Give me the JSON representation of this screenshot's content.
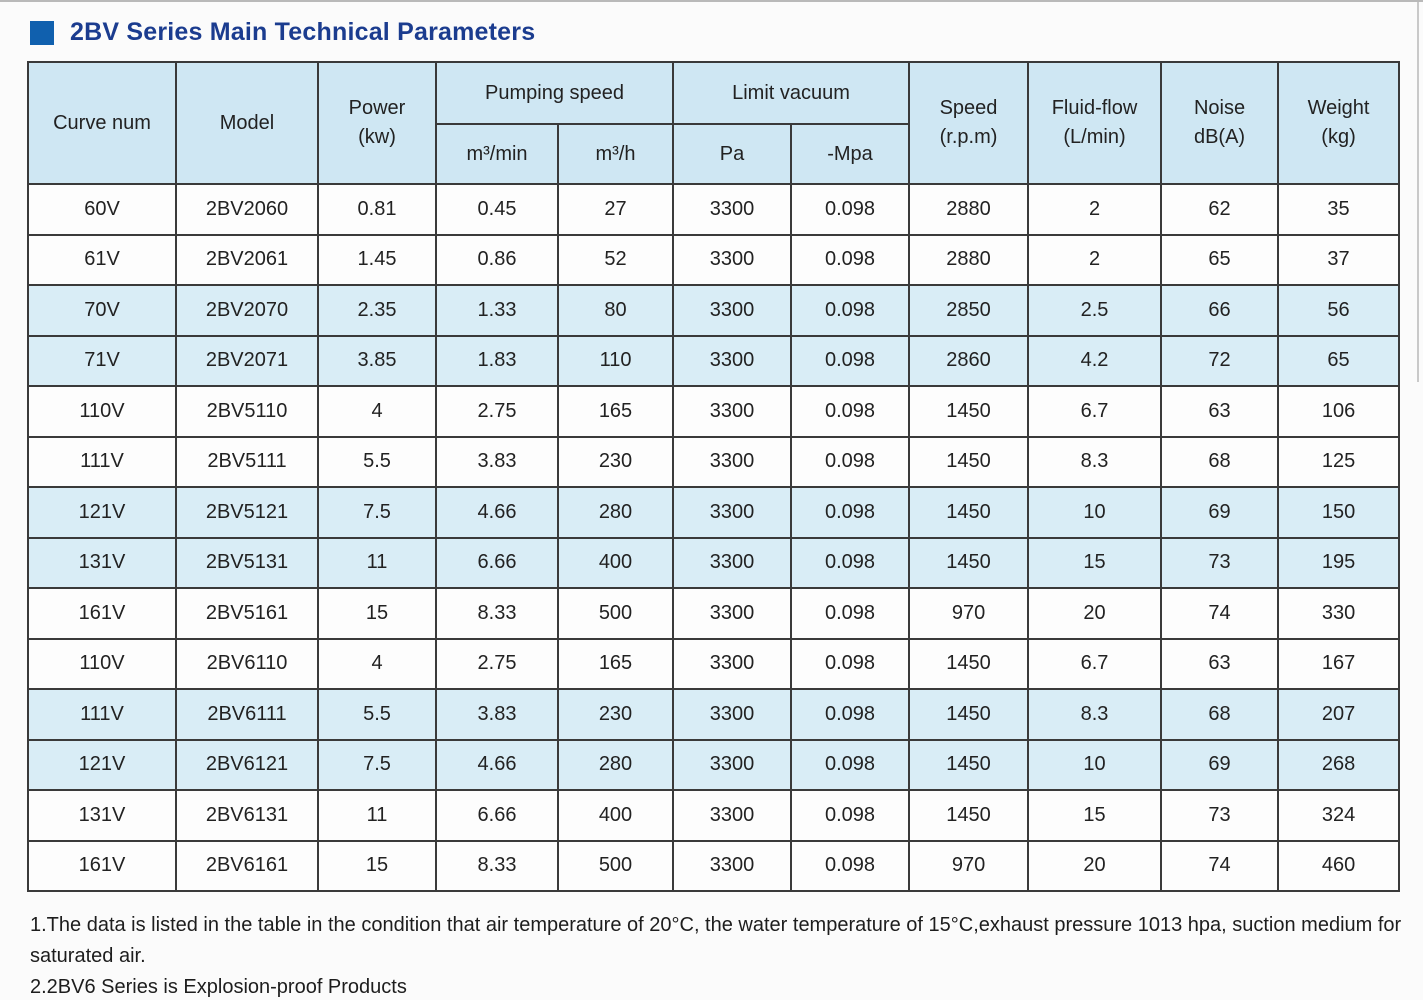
{
  "page": {
    "title": "2BV Series Main Technical Parameters"
  },
  "colors": {
    "title_text": "#1b3c8f",
    "title_square": "#1060ae",
    "header_bg": "#cfe7f3",
    "shaded_row_bg": "#d9edf6",
    "white_row_bg": "#fdfdfd",
    "border": "#3a3a3a"
  },
  "table": {
    "header": {
      "curve_num": "Curve num",
      "model": "Model",
      "power_line1": "Power",
      "power_line2": "(kw)",
      "pumping_speed": "Pumping speed",
      "m3_min": "m³/min",
      "m3_h": "m³/h",
      "limit_vacuum": "Limit vacuum",
      "pa": "Pa",
      "mpa": "-Mpa",
      "speed_line1": "Speed",
      "speed_line2": "(r.p.m)",
      "fluid_line1": "Fluid-flow",
      "fluid_line2": "(L/min)",
      "noise_line1": "Noise",
      "noise_line2": "dB(A)",
      "weight_line1": "Weight",
      "weight_line2": "(kg)"
    },
    "rows": [
      {
        "shaded": false,
        "cells": [
          "60V",
          "2BV2060",
          "0.81",
          "0.45",
          "27",
          "3300",
          "0.098",
          "2880",
          "2",
          "62",
          "35"
        ]
      },
      {
        "shaded": false,
        "cells": [
          "61V",
          "2BV2061",
          "1.45",
          "0.86",
          "52",
          "3300",
          "0.098",
          "2880",
          "2",
          "65",
          "37"
        ]
      },
      {
        "shaded": true,
        "cells": [
          "70V",
          "2BV2070",
          "2.35",
          "1.33",
          "80",
          "3300",
          "0.098",
          "2850",
          "2.5",
          "66",
          "56"
        ]
      },
      {
        "shaded": true,
        "cells": [
          "71V",
          "2BV2071",
          "3.85",
          "1.83",
          "110",
          "3300",
          "0.098",
          "2860",
          "4.2",
          "72",
          "65"
        ]
      },
      {
        "shaded": false,
        "cells": [
          "110V",
          "2BV5110",
          "4",
          "2.75",
          "165",
          "3300",
          "0.098",
          "1450",
          "6.7",
          "63",
          "106"
        ]
      },
      {
        "shaded": false,
        "cells": [
          "111V",
          "2BV5111",
          "5.5",
          "3.83",
          "230",
          "3300",
          "0.098",
          "1450",
          "8.3",
          "68",
          "125"
        ]
      },
      {
        "shaded": true,
        "cells": [
          "121V",
          "2BV5121",
          "7.5",
          "4.66",
          "280",
          "3300",
          "0.098",
          "1450",
          "10",
          "69",
          "150"
        ]
      },
      {
        "shaded": true,
        "cells": [
          "131V",
          "2BV5131",
          "11",
          "6.66",
          "400",
          "3300",
          "0.098",
          "1450",
          "15",
          "73",
          "195"
        ]
      },
      {
        "shaded": false,
        "cells": [
          "161V",
          "2BV5161",
          "15",
          "8.33",
          "500",
          "3300",
          "0.098",
          "970",
          "20",
          "74",
          "330"
        ]
      },
      {
        "shaded": false,
        "cells": [
          "110V",
          "2BV6110",
          "4",
          "2.75",
          "165",
          "3300",
          "0.098",
          "1450",
          "6.7",
          "63",
          "167"
        ]
      },
      {
        "shaded": true,
        "cells": [
          "111V",
          "2BV6111",
          "5.5",
          "3.83",
          "230",
          "3300",
          "0.098",
          "1450",
          "8.3",
          "68",
          "207"
        ]
      },
      {
        "shaded": true,
        "cells": [
          "121V",
          "2BV6121",
          "7.5",
          "4.66",
          "280",
          "3300",
          "0.098",
          "1450",
          "10",
          "69",
          "268"
        ]
      },
      {
        "shaded": false,
        "cells": [
          "131V",
          "2BV6131",
          "11",
          "6.66",
          "400",
          "3300",
          "0.098",
          "1450",
          "15",
          "73",
          "324"
        ]
      },
      {
        "shaded": false,
        "cells": [
          "161V",
          "2BV6161",
          "15",
          "8.33",
          "500",
          "3300",
          "0.098",
          "970",
          "20",
          "74",
          "460"
        ]
      }
    ]
  },
  "notes": {
    "note1": "1.The data is listed in the table in the condition that air temperature of 20°C, the water temperature of 15°C,exhaust pressure 1013 hpa, suction medium for saturated air.",
    "note2": "2.2BV6 Series is Explosion-proof Products"
  }
}
